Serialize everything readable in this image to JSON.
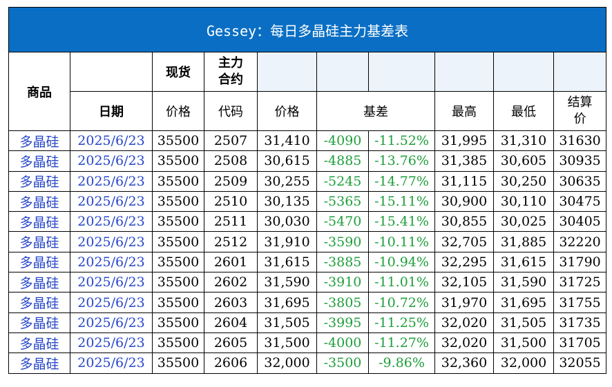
{
  "title": "Gessey：每日多晶硅主力基差表",
  "headers": {
    "product": "商品",
    "spot": "现货",
    "main_contract_line1": "主力",
    "main_contract_line2": "合约",
    "date": "日期",
    "spot_price": "价格",
    "code": "代码",
    "price": "价格",
    "basis": "基差",
    "high": "最高",
    "low": "最低",
    "settle_line1": "结算",
    "settle_line2": "价"
  },
  "colors": {
    "title_bg": "#0a6fc4",
    "product_text": "#2646c8",
    "basis_text": "#1e9e3a",
    "header_shade": "#edf3fb"
  },
  "rows": [
    {
      "product": "多晶硅",
      "date": "2025/6/23",
      "spot": "35500",
      "code": "2507",
      "price": "31,410",
      "basis": "-4090",
      "basis_pct": "-11.52%",
      "high": "31,995",
      "low": "31,310",
      "settle": "31630"
    },
    {
      "product": "多晶硅",
      "date": "2025/6/23",
      "spot": "35500",
      "code": "2508",
      "price": "30,615",
      "basis": "-4885",
      "basis_pct": "-13.76%",
      "high": "31,385",
      "low": "30,605",
      "settle": "30935"
    },
    {
      "product": "多晶硅",
      "date": "2025/6/23",
      "spot": "35500",
      "code": "2509",
      "price": "30,255",
      "basis": "-5245",
      "basis_pct": "-14.77%",
      "high": "31,115",
      "low": "30,250",
      "settle": "30635"
    },
    {
      "product": "多晶硅",
      "date": "2025/6/23",
      "spot": "35500",
      "code": "2510",
      "price": "30,135",
      "basis": "-5365",
      "basis_pct": "-15.11%",
      "high": "30,900",
      "low": "30,110",
      "settle": "30475"
    },
    {
      "product": "多晶硅",
      "date": "2025/6/23",
      "spot": "35500",
      "code": "2511",
      "price": "30,030",
      "basis": "-5470",
      "basis_pct": "-15.41%",
      "high": "30,855",
      "low": "30,025",
      "settle": "30405"
    },
    {
      "product": "多晶硅",
      "date": "2025/6/23",
      "spot": "35500",
      "code": "2512",
      "price": "31,910",
      "basis": "-3590",
      "basis_pct": "-10.11%",
      "high": "32,705",
      "low": "31,885",
      "settle": "32220"
    },
    {
      "product": "多晶硅",
      "date": "2025/6/23",
      "spot": "35500",
      "code": "2601",
      "price": "31,615",
      "basis": "-3885",
      "basis_pct": "-10.94%",
      "high": "32,295",
      "low": "31,615",
      "settle": "31790"
    },
    {
      "product": "多晶硅",
      "date": "2025/6/23",
      "spot": "35500",
      "code": "2602",
      "price": "31,590",
      "basis": "-3910",
      "basis_pct": "-11.01%",
      "high": "32,105",
      "low": "31,590",
      "settle": "31725"
    },
    {
      "product": "多晶硅",
      "date": "2025/6/23",
      "spot": "35500",
      "code": "2603",
      "price": "31,695",
      "basis": "-3805",
      "basis_pct": "-10.72%",
      "high": "31,970",
      "low": "31,695",
      "settle": "31755"
    },
    {
      "product": "多晶硅",
      "date": "2025/6/23",
      "spot": "35500",
      "code": "2604",
      "price": "31,505",
      "basis": "-3995",
      "basis_pct": "-11.25%",
      "high": "32,020",
      "low": "31,505",
      "settle": "31735"
    },
    {
      "product": "多晶硅",
      "date": "2025/6/23",
      "spot": "35500",
      "code": "2605",
      "price": "31,500",
      "basis": "-4000",
      "basis_pct": "-11.27%",
      "high": "32,020",
      "low": "31,500",
      "settle": "31705"
    },
    {
      "product": "多晶硅",
      "date": "2025/6/23",
      "spot": "35500",
      "code": "2606",
      "price": "32,000",
      "basis": "-3500",
      "basis_pct": "-9.86%",
      "high": "32,360",
      "low": "32,000",
      "settle": "32055"
    }
  ]
}
